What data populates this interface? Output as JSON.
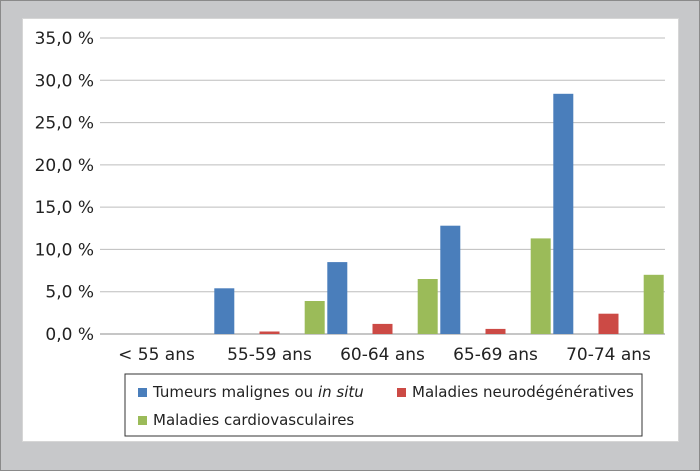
{
  "chart_data": {
    "type": "bar",
    "categories": [
      "< 55 ans",
      "55-59 ans",
      "60-64 ans",
      "65-69 ans",
      "70-74 ans"
    ],
    "series": [
      {
        "name": "Tumeurs malignes ou",
        "name_italic": "in situ",
        "color": "#4a7ebb",
        "values": [
          0,
          5.4,
          8.5,
          12.8,
          28.4
        ]
      },
      {
        "name": "Maladies neurodégénératives",
        "color": "#cc4a45",
        "values": [
          0,
          0.3,
          1.2,
          0.6,
          2.4
        ]
      },
      {
        "name": "Maladies cardiovasculaires",
        "color": "#9bbb59",
        "values": [
          0,
          3.9,
          6.5,
          11.3,
          7.0
        ]
      }
    ],
    "yticks": [
      "0,0 %",
      "5,0 %",
      "10,0 %",
      "15,0 %",
      "20,0 %",
      "25,0 %",
      "30,0 %",
      "35,0 %"
    ],
    "ylim": [
      0,
      35
    ],
    "grid": true,
    "legend_position": "bottom"
  }
}
